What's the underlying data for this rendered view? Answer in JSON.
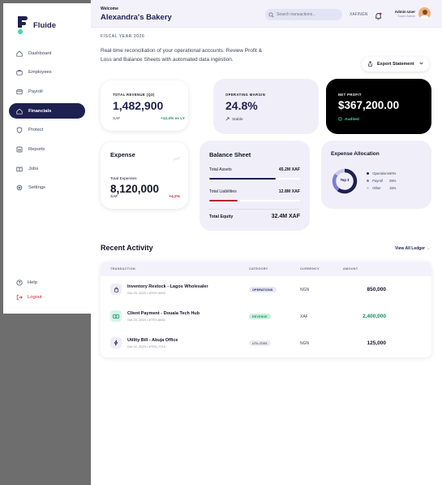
{
  "brand": {
    "name": "Fluide"
  },
  "sidebar": {
    "items": [
      {
        "label": "Dashboard",
        "icon": "home-icon"
      },
      {
        "label": "Employees",
        "icon": "users-icon"
      },
      {
        "label": "Payroll",
        "icon": "payroll-icon"
      },
      {
        "label": "Financials",
        "icon": "financials-icon",
        "active": true
      },
      {
        "label": "Protect",
        "icon": "shield-icon"
      },
      {
        "label": "Reports",
        "icon": "reports-icon"
      },
      {
        "label": "Jobs",
        "icon": "jobs-icon"
      },
      {
        "label": "Settings",
        "icon": "gear-icon"
      }
    ],
    "help": "Help",
    "logout": "Logout"
  },
  "header": {
    "welcome": "Welcome",
    "business": "Alexandra's Bakery",
    "search_placeholder": "Search transactions...",
    "currency_switch": "XAF/NGN",
    "user_name": "Admin User",
    "user_role": "Super Admin"
  },
  "page": {
    "fiscal_year": "FISCAL YEAR 2026",
    "description": "Real-time reconciliation of your operational accounts. Review Profit & Loss and Balance Sheets with automated data ingestion.",
    "export_label": "Export Statement"
  },
  "kpis": {
    "revenue": {
      "label": "TOTAL REVENUE (Q3)",
      "value": "1,482,900",
      "currency": "XAF",
      "change": "+12.4% vs LY"
    },
    "margin": {
      "label": "OPERATING MARGIN",
      "value": "24.8%",
      "status": "Stable"
    },
    "net_profit": {
      "label": "NET PROFIT",
      "value": "$367,200.00",
      "status": "Audited"
    }
  },
  "expense": {
    "title": "Expense",
    "label": "Total Expenses",
    "value": "8,120,000",
    "currency": "XAF",
    "change": "+4.2%"
  },
  "balance_sheet": {
    "title": "Balance Sheet",
    "assets_label": "Total Assets",
    "assets_value": "45.2M XAF",
    "assets_fraction": 0.73,
    "liabilities_label": "Total Liabilities",
    "liabilities_value": "12.8M XAF",
    "liabilities_fraction": 0.31,
    "equity_label": "Total Equity",
    "equity_value": "32.4M XAF"
  },
  "allocation": {
    "title": "Expense Allocation",
    "center_label": "Top 3",
    "items": [
      {
        "name": "Operations",
        "pct": "60%",
        "color": "#1e2150"
      },
      {
        "name": "Payroll",
        "pct": "25%",
        "color": "#7b7fd6"
      },
      {
        "name": "Other",
        "pct": "15%",
        "color": "#c9c8e6"
      }
    ]
  },
  "activity": {
    "title": "Recent Activity",
    "link": "View All Ledger →",
    "columns": [
      "TRANSACTION",
      "CATEGORY",
      "CURRENCY",
      "AMOUNT"
    ],
    "rows": [
      {
        "name": "Inventory Restock - Lagos Wholesaler",
        "meta": "Oct 23, 2023 • #TRX-9902",
        "category": "OPERATIONS",
        "currency": "NGN",
        "amount": "850,000",
        "icon": "bag-icon"
      },
      {
        "name": "Client Payment - Douala Tech Hub",
        "meta": "Oct 23, 2023 • #TRX-8841",
        "category": "REVENUE",
        "currency": "XAF",
        "amount": "2,400,000",
        "icon": "cash-icon"
      },
      {
        "name": "Utility Bill - Abuja Office",
        "meta": "Oct 22, 2023 • #TRX-7710",
        "category": "UTILITIES",
        "currency": "NGN",
        "amount": "125,000",
        "icon": "bolt-icon"
      }
    ]
  },
  "colors": {
    "navy": "#1e2150",
    "positive": "#1a8a5c",
    "negative": "#c2282e",
    "audited": "#3fd6b8"
  }
}
